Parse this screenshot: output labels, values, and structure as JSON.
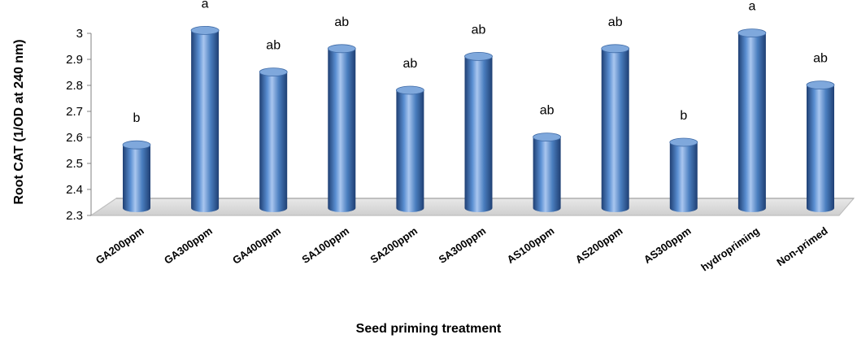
{
  "chart_data": {
    "type": "bar",
    "title": "",
    "xlabel": "Seed priming treatment",
    "ylabel": "Root CAT (1/OD at 240 nm)",
    "ylim": [
      2.3,
      3.0
    ],
    "yticks": [
      "2.3",
      "2.4",
      "2.5",
      "2.6",
      "2.7",
      "2.8",
      "2.9",
      "3"
    ],
    "categories": [
      "GA200ppm",
      "GA300ppm",
      "GA400ppm",
      "SA100ppm",
      "SA200ppm",
      "SA300ppm",
      "AS100ppm",
      "AS200ppm",
      "AS300ppm",
      "hydropriming",
      "Non-primed"
    ],
    "values": [
      2.54,
      2.98,
      2.82,
      2.91,
      2.75,
      2.88,
      2.57,
      2.91,
      2.55,
      2.97,
      2.77
    ],
    "labels": [
      "b",
      "a",
      "ab",
      "ab",
      "ab",
      "ab",
      "ab",
      "ab",
      "b",
      "a",
      "ab"
    ],
    "grid": false,
    "legend": "none",
    "style": "3d-cylinder",
    "colors": {
      "bar": "#4a7ebf",
      "bar_dark": "#1f3f73",
      "bar_light": "#a9c6ef",
      "floor": "#bfbfbf"
    }
  }
}
